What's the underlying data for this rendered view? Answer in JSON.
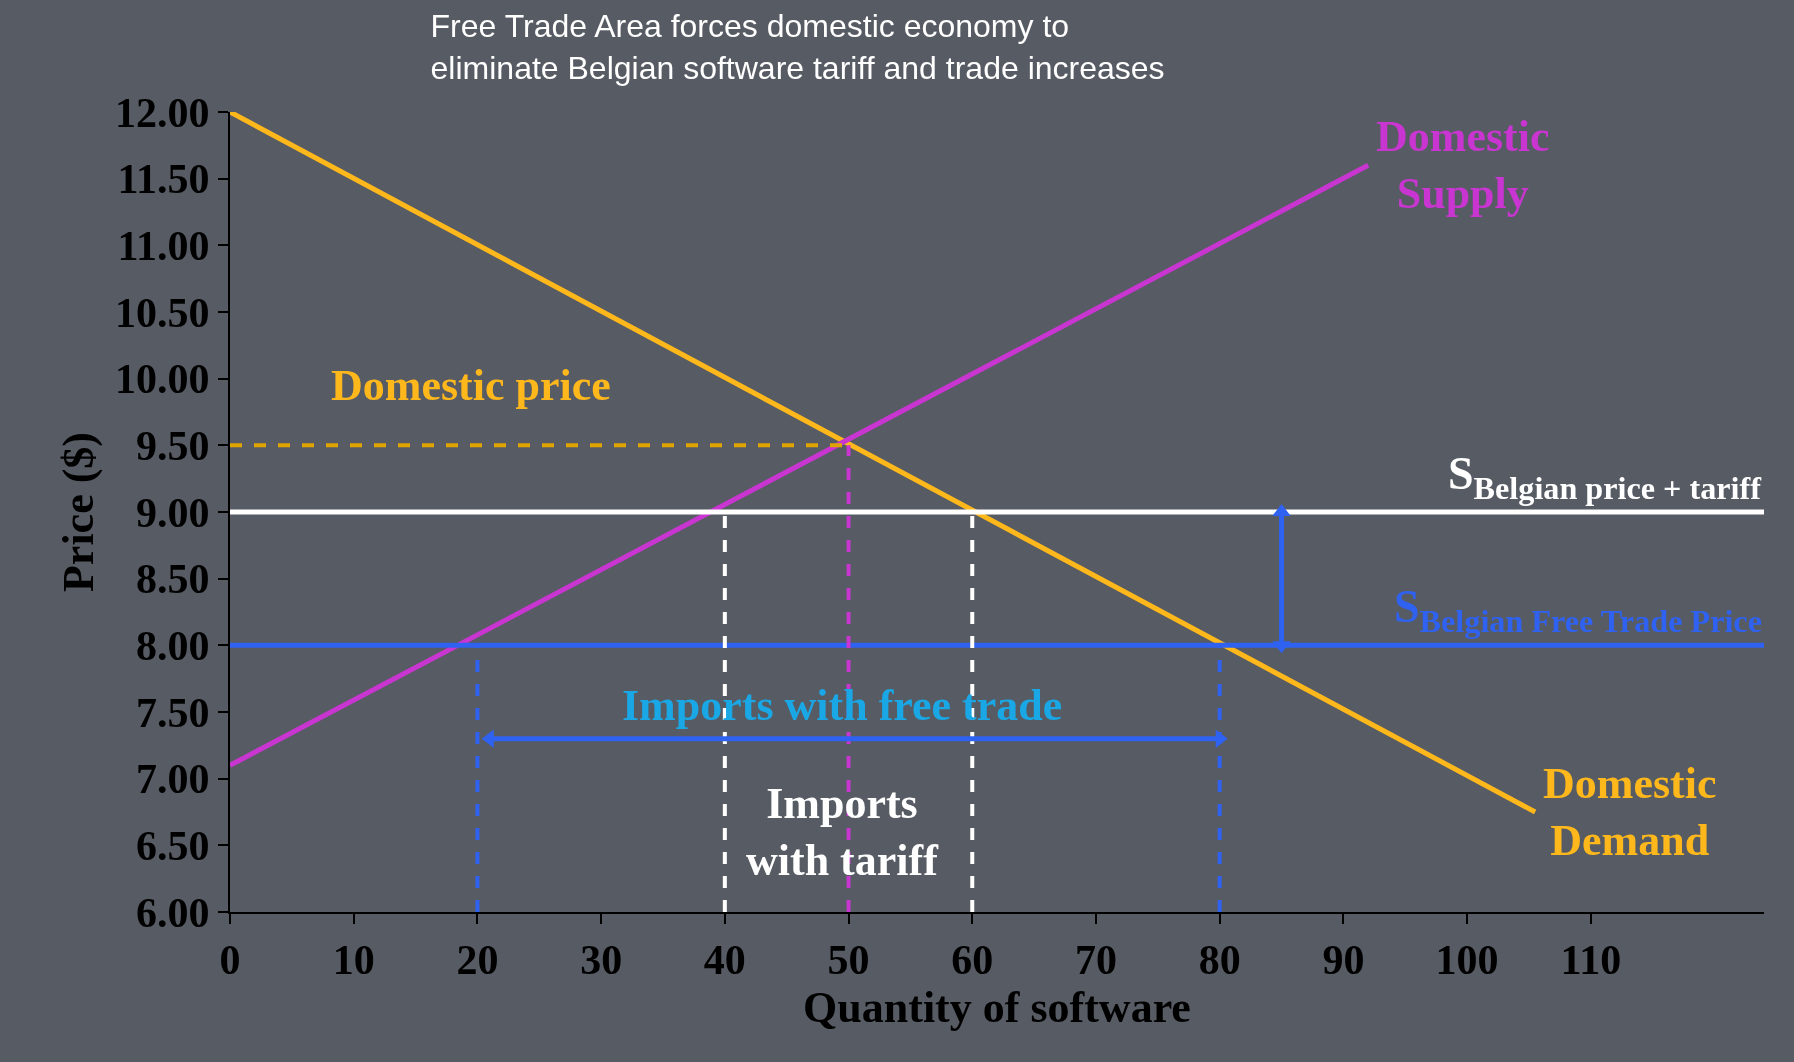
{
  "chart_data": {
    "type": "line",
    "title": "Free Trade Area forces domestic economy to\neliminate Belgian software tariff and trade increases",
    "xlabel": "Quantity of software",
    "ylabel": "Price ($)",
    "xlim": [
      0,
      124
    ],
    "xticks": [
      0,
      10,
      20,
      30,
      40,
      50,
      60,
      70,
      80,
      90,
      100,
      110
    ],
    "ylim": [
      6,
      12
    ],
    "yticks": [
      {
        "value": 6,
        "label": "6.00"
      },
      {
        "value": 6.5,
        "label": "6.50"
      },
      {
        "value": 7,
        "label": "7.00"
      },
      {
        "value": 7.5,
        "label": "7.50"
      },
      {
        "value": 8,
        "label": "8.00"
      },
      {
        "value": 8.5,
        "label": "8.50"
      },
      {
        "value": 9,
        "label": "9.00"
      },
      {
        "value": 9.5,
        "label": "9.50"
      },
      {
        "value": 10,
        "label": "10.00"
      },
      {
        "value": 10.5,
        "label": "10.50"
      },
      {
        "value": 11,
        "label": "11.00"
      },
      {
        "value": 11.5,
        "label": "11.50"
      },
      {
        "value": 12,
        "label": "12.00"
      }
    ],
    "grid": false,
    "series": [
      {
        "name": "Domestic\nDemand",
        "color": "#ffb81c",
        "x": [
          0,
          105.5
        ],
        "values": [
          12.0,
          6.75
        ]
      },
      {
        "name": "Domestic\nSupply",
        "color": "#c935d0",
        "x": [
          0,
          92
        ],
        "values": [
          7.1,
          11.6
        ]
      },
      {
        "name": "S$_{Belgian price + tariff}$",
        "color": "#ffffff",
        "x": [
          0,
          124
        ],
        "values": [
          9.0,
          9.0
        ]
      },
      {
        "name": "S$_{Belgian Free Trade Price}$",
        "color": "#2f62f0",
        "x": [
          0,
          124
        ],
        "values": [
          8.0,
          8.0
        ]
      },
      {
        "color": "#e0a400",
        "x": [
          0,
          50
        ],
        "values": [
          9.5,
          9.5
        ],
        "line_style": "dashed"
      },
      {
        "color": "#c935d0",
        "x": [
          50,
          50
        ],
        "values": [
          6,
          9.5
        ],
        "line_style": "dashed"
      },
      {
        "color": "#ffffff",
        "x": [
          40,
          40
        ],
        "values": [
          6,
          9
        ],
        "line_style": "dashed"
      },
      {
        "color": "#ffffff",
        "x": [
          60,
          60
        ],
        "values": [
          6,
          9
        ],
        "line_style": "dashed"
      },
      {
        "color": "#2f62f0",
        "x": [
          20,
          20
        ],
        "values": [
          6,
          8
        ],
        "line_style": "dashed"
      },
      {
        "color": "#2f62f0",
        "x": [
          80,
          80
        ],
        "values": [
          6,
          8
        ],
        "line_style": "dashed"
      },
      {
        "color": "#2f62f0",
        "x": [
          21,
          80
        ],
        "values": [
          7.3,
          7.3
        ],
        "marker": "triangle"
      },
      {
        "color": "#2f62f0",
        "x": [
          85,
          85
        ],
        "values": [
          9,
          8
        ],
        "marker": "triangle"
      }
    ],
    "annotations": [
      "Domestic price",
      "Imports with free trade",
      "Imports\nwith tariff"
    ]
  }
}
